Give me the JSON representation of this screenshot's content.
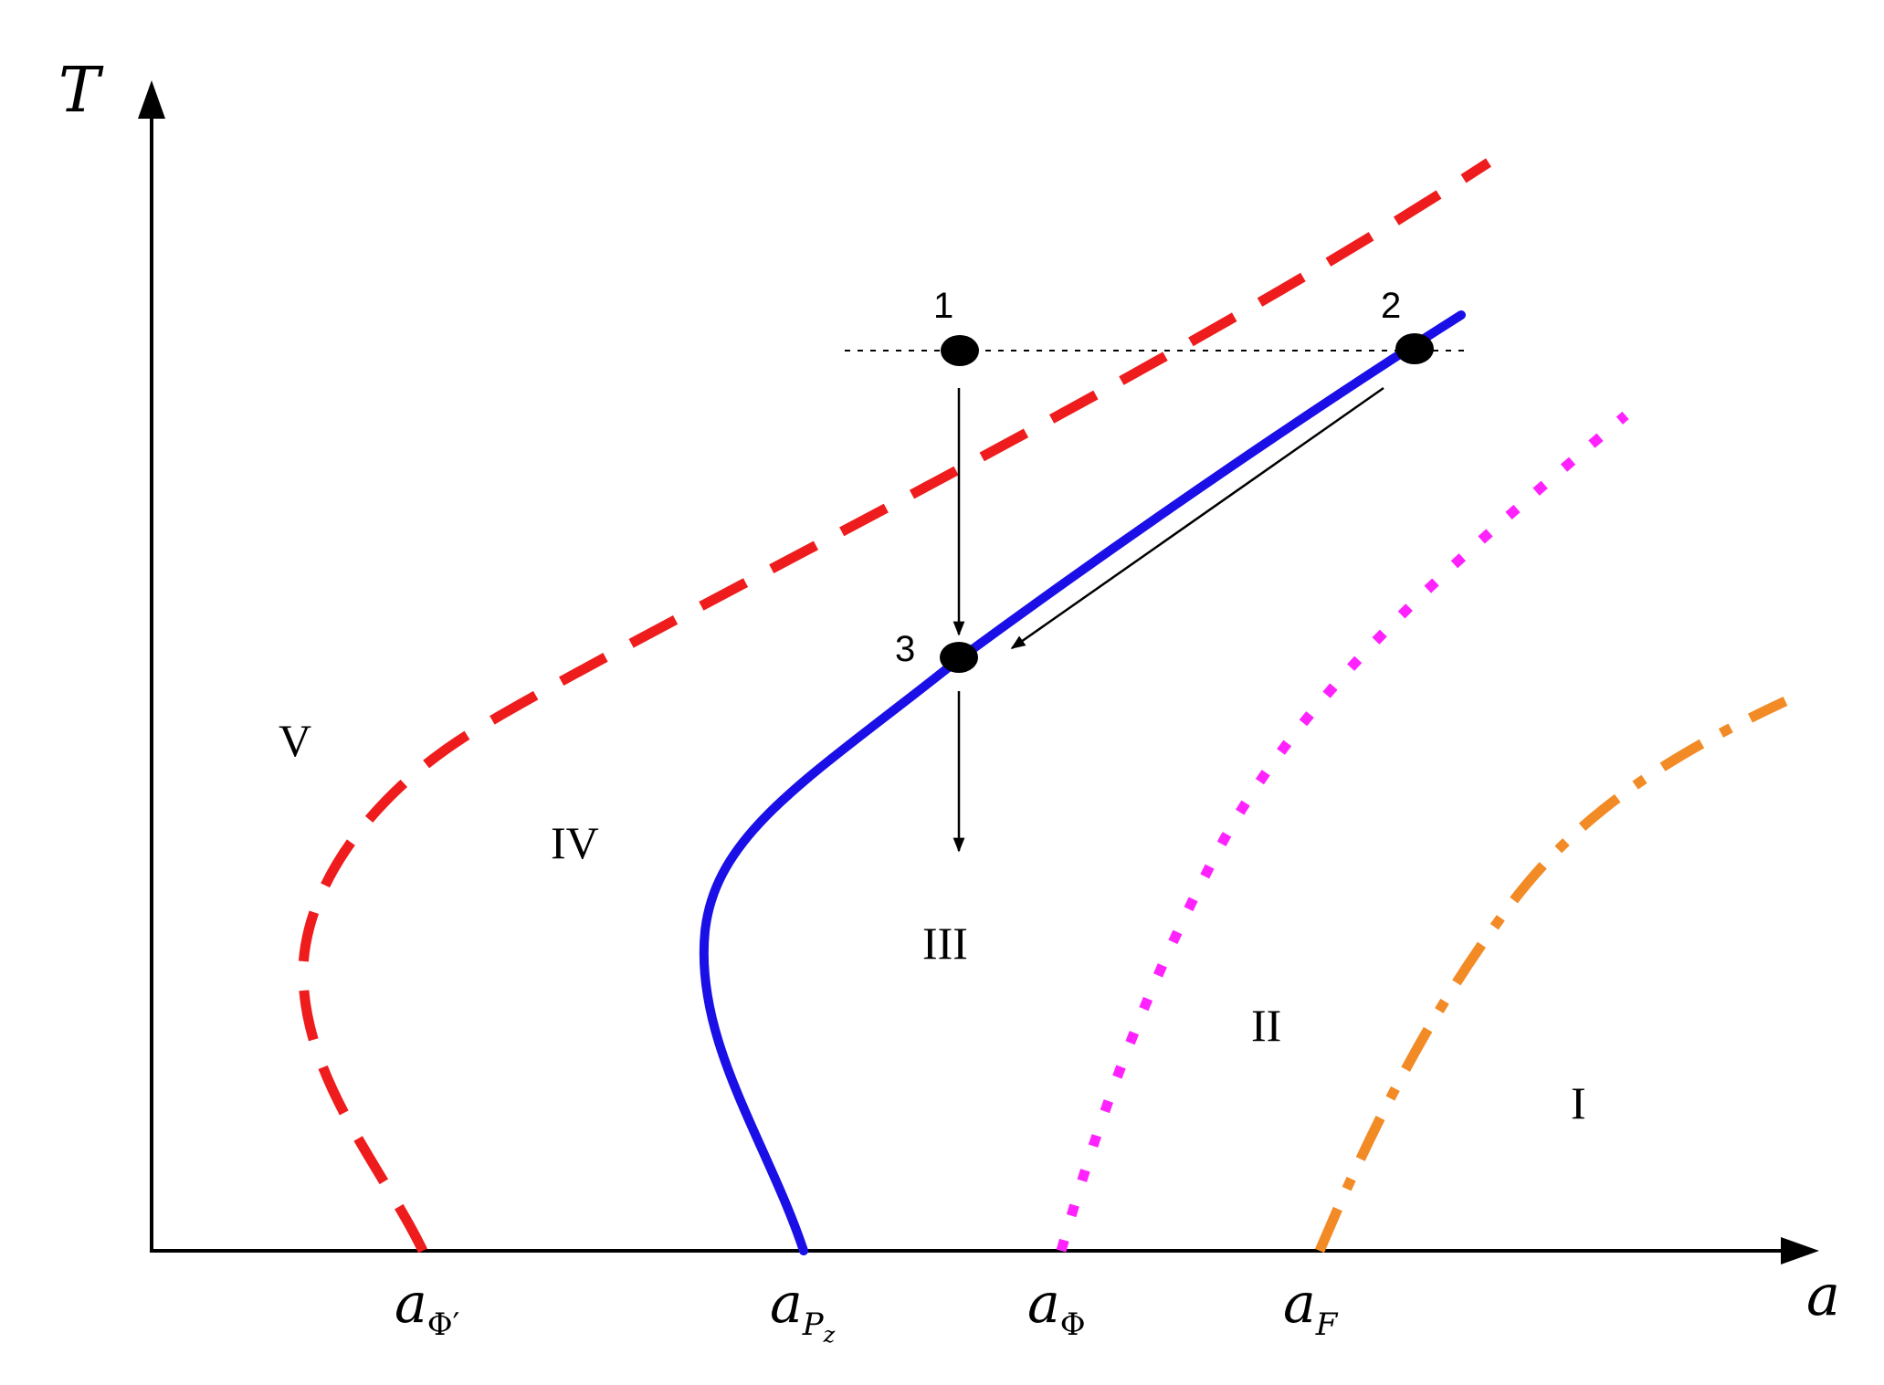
{
  "axes": {
    "y_label": "T",
    "x_label": "a"
  },
  "x_ticks": [
    {
      "main": "a",
      "sub": "Φ′"
    },
    {
      "main": "a",
      "sub": "P",
      "subsub": "z"
    },
    {
      "main": "a",
      "sub": "Φ"
    },
    {
      "main": "a",
      "sub": "F"
    }
  ],
  "regions": [
    "V",
    "IV",
    "III",
    "II",
    "I"
  ],
  "points": [
    "1",
    "2",
    "3"
  ],
  "colors": {
    "axis": "#000000",
    "curve_red": "#ee1c1c",
    "curve_blue": "#1a0fe6",
    "curve_magenta": "#ff22ff",
    "curve_orange": "#f28a26",
    "point": "#000000"
  }
}
